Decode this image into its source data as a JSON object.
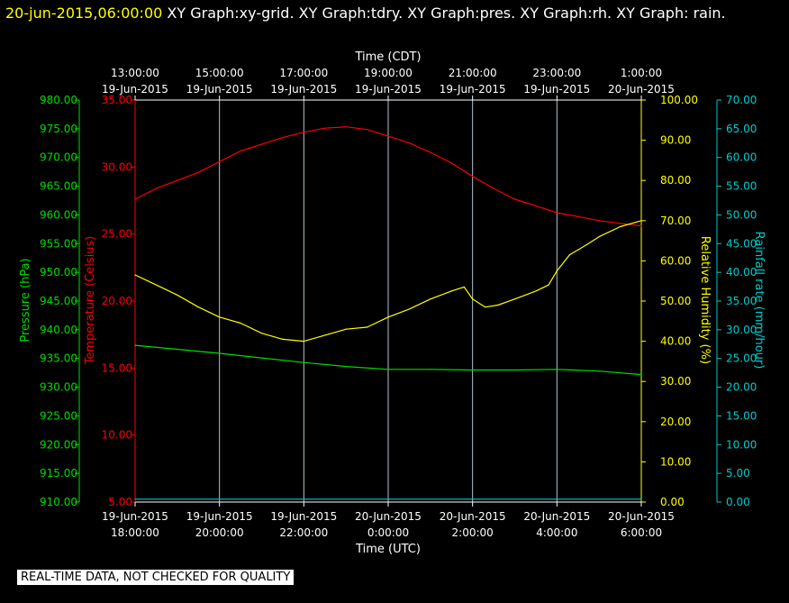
{
  "header": {
    "timestamp": "20-jun-2015,06:00:00",
    "title": "XY Graph:xy-grid.  XY Graph:tdry.  XY Graph:pres.  XY Graph:rh.  XY Graph: rain."
  },
  "footer": {
    "note": "REAL-TIME DATA, NOT CHECKED FOR QUALITY"
  },
  "chart_data": {
    "type": "line",
    "top_axis": {
      "label": "Time (CDT)",
      "ticks": [
        [
          "13:00:00",
          "19-Jun-2015"
        ],
        [
          "15:00:00",
          "19-Jun-2015"
        ],
        [
          "17:00:00",
          "19-Jun-2015"
        ],
        [
          "19:00:00",
          "19-Jun-2015"
        ],
        [
          "21:00:00",
          "19-Jun-2015"
        ],
        [
          "23:00:00",
          "19-Jun-2015"
        ],
        [
          "1:00:00",
          "20-Jun-2015"
        ]
      ]
    },
    "bottom_axis": {
      "label": "Time (UTC)",
      "ticks": [
        [
          "19-Jun-2015",
          "18:00:00"
        ],
        [
          "19-Jun-2015",
          "20:00:00"
        ],
        [
          "19-Jun-2015",
          "22:00:00"
        ],
        [
          "20-Jun-2015",
          "0:00:00"
        ],
        [
          "20-Jun-2015",
          "2:00:00"
        ],
        [
          "20-Jun-2015",
          "4:00:00"
        ],
        [
          "20-Jun-2015",
          "6:00:00"
        ]
      ],
      "range_hours": [
        0,
        12
      ]
    },
    "axes": [
      {
        "id": "pres",
        "label": "Pressure (hPa)",
        "color": "#00dd00",
        "min": 910,
        "max": 980,
        "step": 5,
        "decimals": 2
      },
      {
        "id": "tdry",
        "label": "Temperature (Celsius)",
        "color": "#ff0000",
        "min": 5,
        "max": 35,
        "step": 5,
        "decimals": 2
      },
      {
        "id": "rh",
        "label": "Relative Humidity (%)",
        "color": "#ffff00",
        "min": 0,
        "max": 100,
        "step": 10,
        "decimals": 2
      },
      {
        "id": "rain",
        "label": "Rainfall rate (mm/hour)",
        "color": "#00cccc",
        "min": 0,
        "max": 70,
        "step": 5,
        "decimals": 2
      }
    ],
    "grid": true,
    "series": [
      {
        "axis": "tdry",
        "color": "#ff0000",
        "x": [
          0,
          0.5,
          1,
          1.5,
          2,
          2.5,
          3,
          3.5,
          4,
          4.5,
          5,
          5.5,
          6,
          6.5,
          7,
          7.5,
          8,
          8.5,
          9,
          9.5,
          10,
          10.5,
          11,
          11.5,
          12
        ],
        "y": [
          27.6,
          28.4,
          29.0,
          29.6,
          30.4,
          31.2,
          31.7,
          32.2,
          32.6,
          32.9,
          33.0,
          32.8,
          32.3,
          31.8,
          31.1,
          30.3,
          29.3,
          28.4,
          27.6,
          27.1,
          26.6,
          26.3,
          26.0,
          25.8,
          25.6
        ]
      },
      {
        "axis": "pres",
        "color": "#00dd00",
        "x": [
          0,
          1,
          2,
          3,
          4,
          5,
          6,
          7,
          8,
          9,
          10,
          11,
          12
        ],
        "y": [
          937.3,
          936.6,
          935.9,
          935.1,
          934.3,
          933.6,
          933.1,
          933.1,
          933.0,
          933.0,
          933.1,
          932.8,
          932.2
        ]
      },
      {
        "axis": "rh",
        "color": "#ffff00",
        "x": [
          0,
          0.3,
          0.7,
          1,
          1.5,
          2,
          2.5,
          3,
          3.5,
          4,
          4.5,
          5,
          5.5,
          6,
          6.5,
          7,
          7.5,
          7.8,
          8,
          8.3,
          8.6,
          9,
          9.5,
          9.8,
          10,
          10.3,
          10.7,
          11,
          11.5,
          12
        ],
        "y": [
          56.5,
          55.0,
          53.0,
          51.5,
          48.5,
          46.0,
          44.5,
          42.0,
          40.5,
          40.0,
          41.5,
          43.0,
          43.5,
          46.0,
          48.0,
          50.5,
          52.5,
          53.5,
          50.5,
          48.5,
          49.0,
          50.5,
          52.5,
          54.0,
          57.5,
          61.5,
          64.0,
          66.0,
          68.5,
          70.0
        ]
      },
      {
        "axis": "rain",
        "color": "#00cccc",
        "x": [
          0,
          12
        ],
        "y": [
          0.5,
          0.5
        ]
      }
    ]
  }
}
